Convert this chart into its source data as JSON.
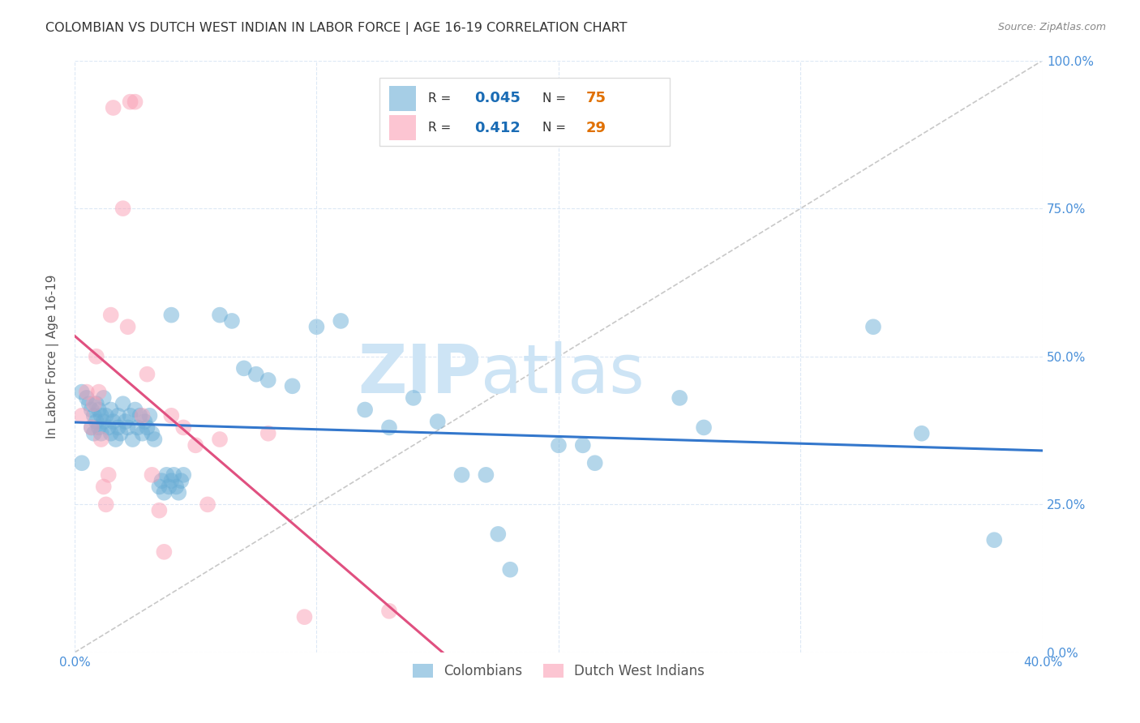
{
  "title": "COLOMBIAN VS DUTCH WEST INDIAN IN LABOR FORCE | AGE 16-19 CORRELATION CHART",
  "source": "Source: ZipAtlas.com",
  "ylabel": "In Labor Force | Age 16-19",
  "xmin": 0.0,
  "xmax": 0.4,
  "ymin": 0.0,
  "ymax": 1.0,
  "xticks": [
    0.0,
    0.1,
    0.2,
    0.3,
    0.4
  ],
  "yticks": [
    0.0,
    0.25,
    0.5,
    0.75,
    1.0
  ],
  "xticklabels": [
    "0.0%",
    "",
    "",
    "",
    "40.0%"
  ],
  "yticklabels_right": [
    "0.0%",
    "25.0%",
    "50.0%",
    "75.0%",
    "100.0%"
  ],
  "colombian_R": 0.045,
  "colombian_N": 75,
  "dutch_R": 0.412,
  "dutch_N": 29,
  "colombian_color": "#6baed6",
  "dutch_color": "#fa9fb5",
  "colombian_scatter": [
    [
      0.003,
      0.44
    ],
    [
      0.005,
      0.43
    ],
    [
      0.006,
      0.42
    ],
    [
      0.007,
      0.41
    ],
    [
      0.007,
      0.38
    ],
    [
      0.008,
      0.4
    ],
    [
      0.008,
      0.37
    ],
    [
      0.009,
      0.42
    ],
    [
      0.009,
      0.39
    ],
    [
      0.01,
      0.41
    ],
    [
      0.01,
      0.38
    ],
    [
      0.011,
      0.4
    ],
    [
      0.011,
      0.37
    ],
    [
      0.012,
      0.43
    ],
    [
      0.012,
      0.39
    ],
    [
      0.013,
      0.4
    ],
    [
      0.014,
      0.38
    ],
    [
      0.015,
      0.41
    ],
    [
      0.015,
      0.37
    ],
    [
      0.016,
      0.39
    ],
    [
      0.017,
      0.36
    ],
    [
      0.018,
      0.4
    ],
    [
      0.018,
      0.38
    ],
    [
      0.019,
      0.37
    ],
    [
      0.02,
      0.42
    ],
    [
      0.021,
      0.39
    ],
    [
      0.022,
      0.38
    ],
    [
      0.023,
      0.4
    ],
    [
      0.024,
      0.36
    ],
    [
      0.025,
      0.41
    ],
    [
      0.026,
      0.38
    ],
    [
      0.027,
      0.4
    ],
    [
      0.028,
      0.37
    ],
    [
      0.029,
      0.39
    ],
    [
      0.03,
      0.38
    ],
    [
      0.031,
      0.4
    ],
    [
      0.032,
      0.37
    ],
    [
      0.033,
      0.36
    ],
    [
      0.035,
      0.28
    ],
    [
      0.036,
      0.29
    ],
    [
      0.037,
      0.27
    ],
    [
      0.038,
      0.3
    ],
    [
      0.039,
      0.28
    ],
    [
      0.04,
      0.57
    ],
    [
      0.04,
      0.29
    ],
    [
      0.041,
      0.3
    ],
    [
      0.042,
      0.28
    ],
    [
      0.043,
      0.27
    ],
    [
      0.044,
      0.29
    ],
    [
      0.045,
      0.3
    ],
    [
      0.06,
      0.57
    ],
    [
      0.065,
      0.56
    ],
    [
      0.07,
      0.48
    ],
    [
      0.075,
      0.47
    ],
    [
      0.08,
      0.46
    ],
    [
      0.09,
      0.45
    ],
    [
      0.1,
      0.55
    ],
    [
      0.11,
      0.56
    ],
    [
      0.12,
      0.41
    ],
    [
      0.13,
      0.38
    ],
    [
      0.14,
      0.43
    ],
    [
      0.15,
      0.39
    ],
    [
      0.16,
      0.3
    ],
    [
      0.17,
      0.3
    ],
    [
      0.175,
      0.2
    ],
    [
      0.18,
      0.14
    ],
    [
      0.2,
      0.35
    ],
    [
      0.21,
      0.35
    ],
    [
      0.215,
      0.32
    ],
    [
      0.25,
      0.43
    ],
    [
      0.26,
      0.38
    ],
    [
      0.33,
      0.55
    ],
    [
      0.35,
      0.37
    ],
    [
      0.38,
      0.19
    ],
    [
      0.003,
      0.32
    ]
  ],
  "dutch_scatter": [
    [
      0.003,
      0.4
    ],
    [
      0.005,
      0.44
    ],
    [
      0.007,
      0.38
    ],
    [
      0.008,
      0.42
    ],
    [
      0.009,
      0.5
    ],
    [
      0.01,
      0.44
    ],
    [
      0.011,
      0.36
    ],
    [
      0.012,
      0.28
    ],
    [
      0.013,
      0.25
    ],
    [
      0.014,
      0.3
    ],
    [
      0.015,
      0.57
    ],
    [
      0.02,
      0.75
    ],
    [
      0.022,
      0.55
    ],
    [
      0.023,
      0.93
    ],
    [
      0.025,
      0.93
    ],
    [
      0.028,
      0.4
    ],
    [
      0.03,
      0.47
    ],
    [
      0.032,
      0.3
    ],
    [
      0.035,
      0.24
    ],
    [
      0.037,
      0.17
    ],
    [
      0.04,
      0.4
    ],
    [
      0.045,
      0.38
    ],
    [
      0.05,
      0.35
    ],
    [
      0.055,
      0.25
    ],
    [
      0.06,
      0.36
    ],
    [
      0.08,
      0.37
    ],
    [
      0.095,
      0.06
    ],
    [
      0.13,
      0.07
    ],
    [
      0.016,
      0.92
    ]
  ],
  "watermark": "ZIPatlas",
  "watermark_color": "#cde4f5",
  "background_color": "#ffffff",
  "grid_color": "#dce8f5",
  "title_fontsize": 11.5,
  "tick_color": "#4a90d9",
  "legend_r_color": "#1a6cb5",
  "legend_n_color": "#e07000"
}
